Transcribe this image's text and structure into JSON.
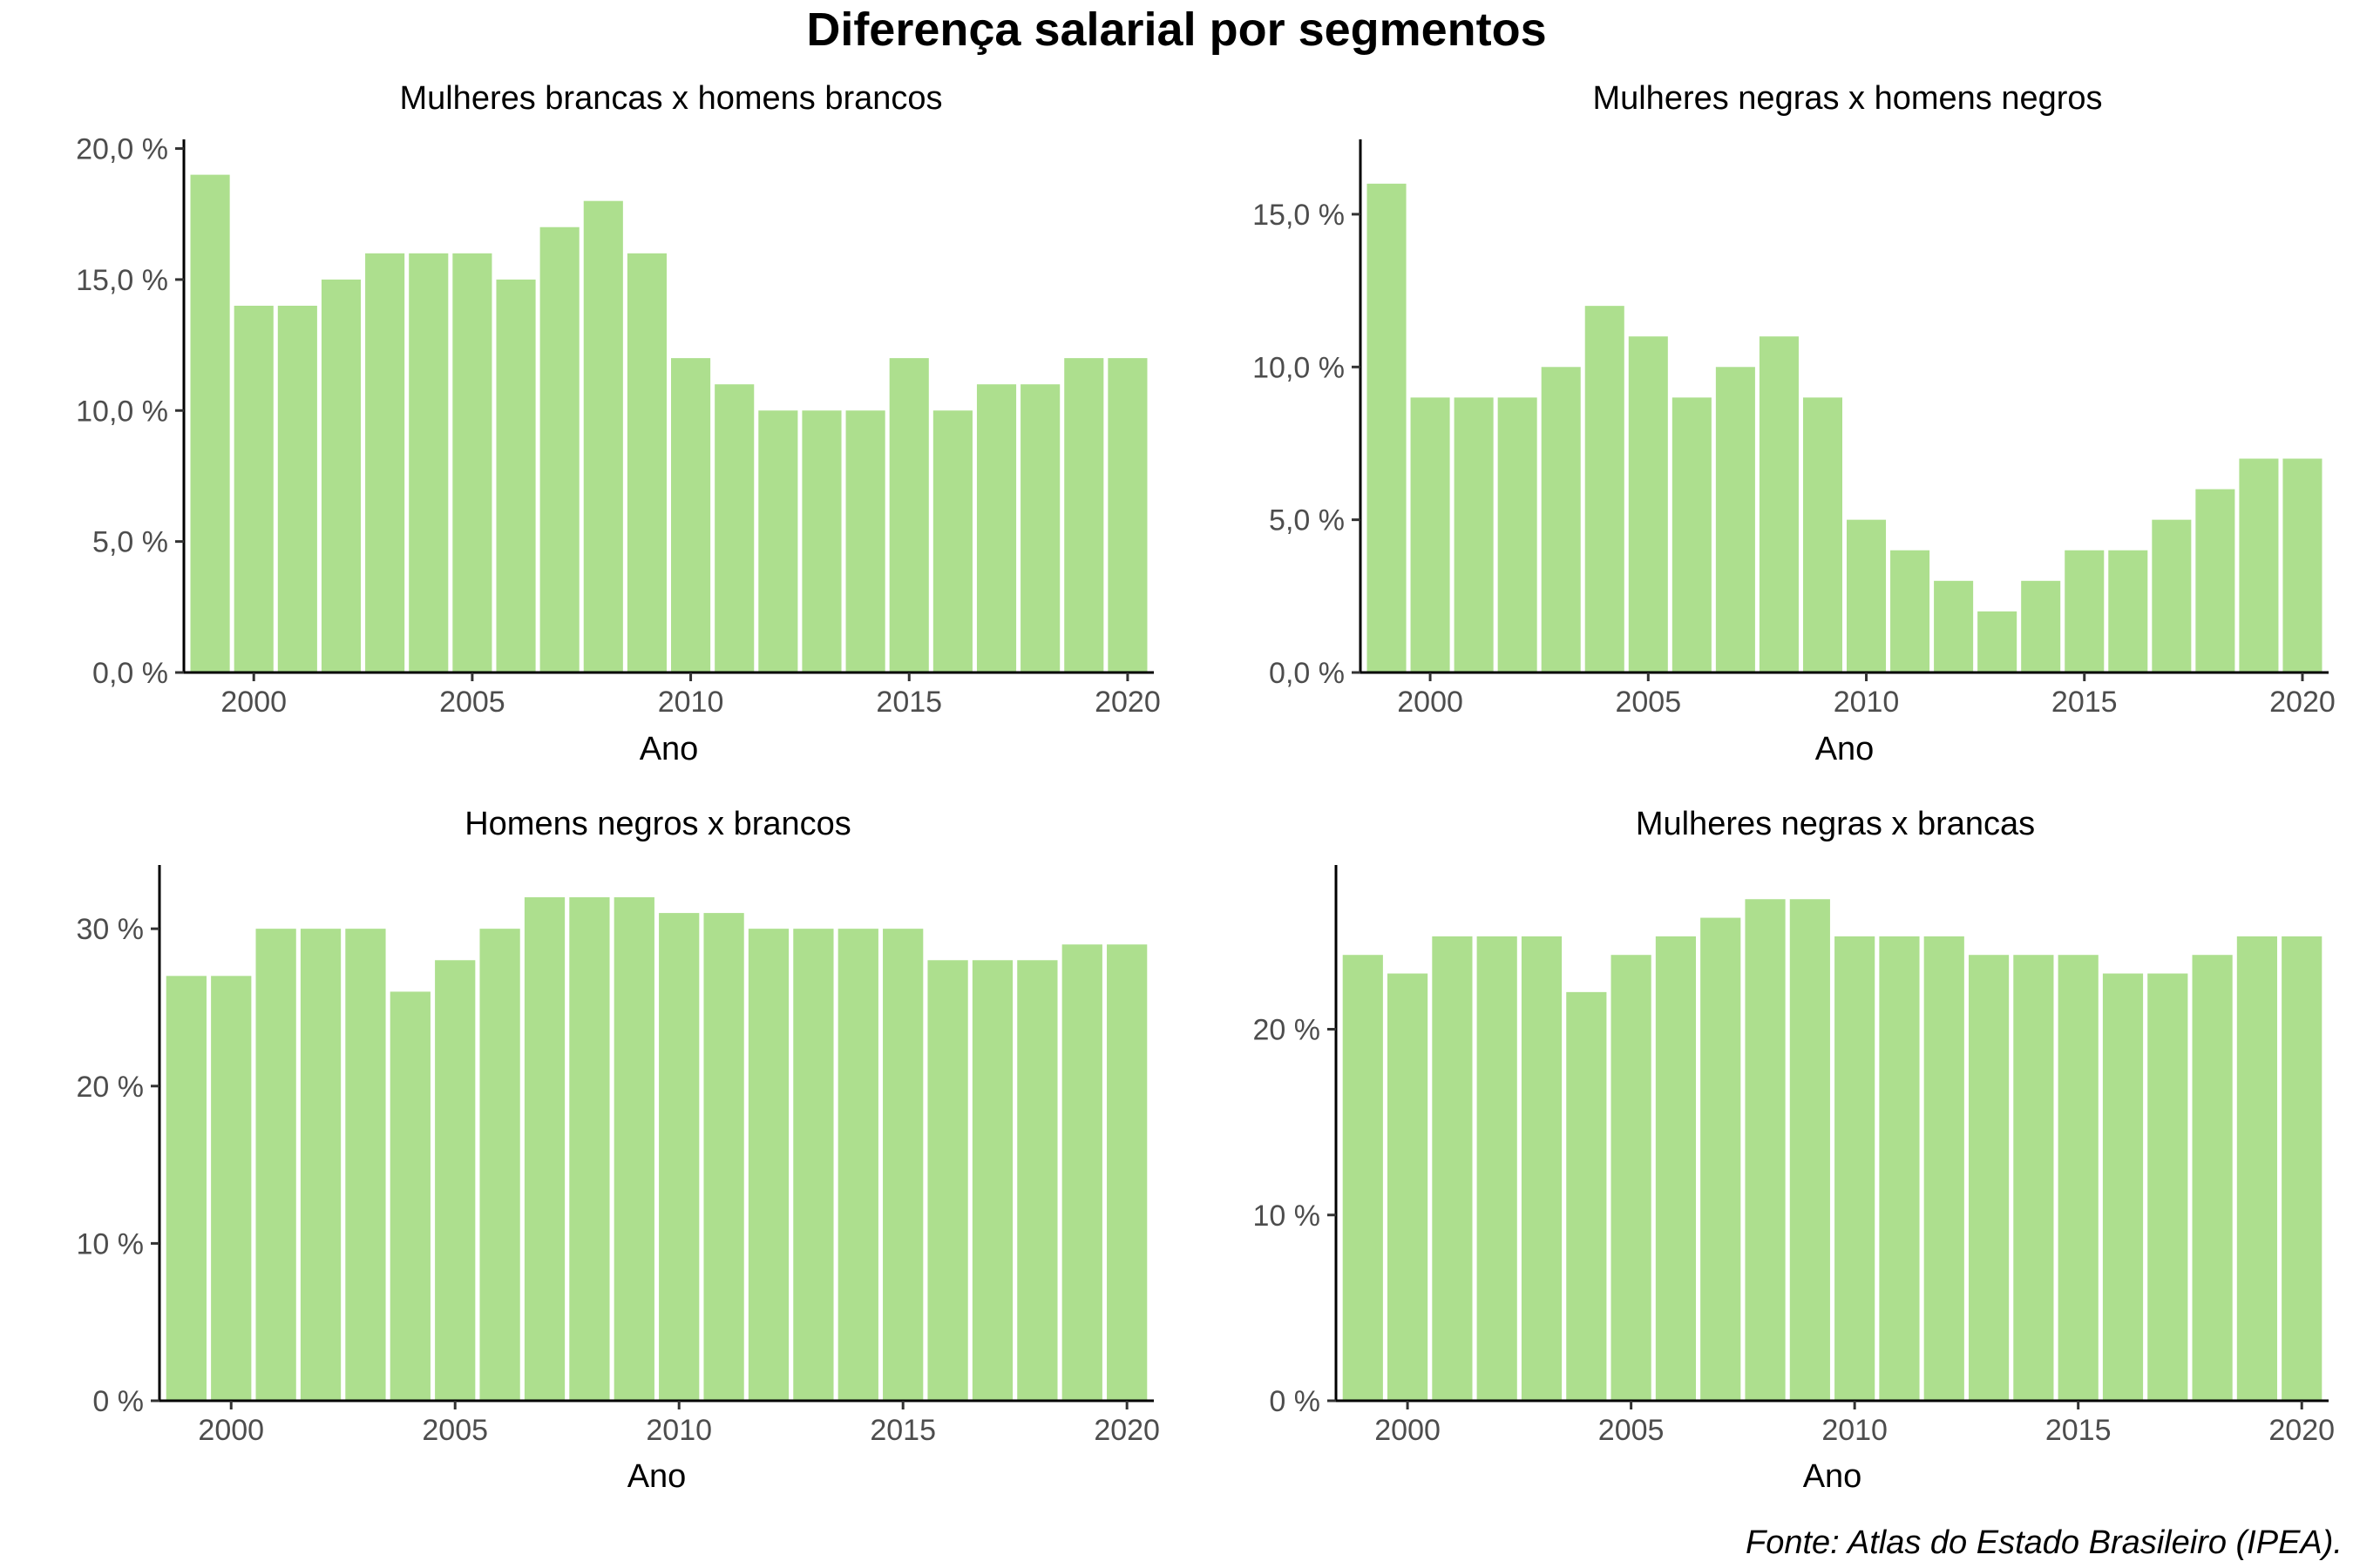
{
  "title": "Diferença salarial por segmentos",
  "caption": "Fonte: Atlas do Estado Brasileiro (IPEA).",
  "colors": {
    "bar": "#ADDF8E"
  },
  "chart_data": [
    {
      "type": "bar",
      "title": "Mulheres brancas x homens brancos",
      "xlabel": "Ano",
      "ylabel": "",
      "x": [
        1999,
        2000,
        2001,
        2002,
        2003,
        2004,
        2005,
        2006,
        2007,
        2008,
        2009,
        2010,
        2011,
        2012,
        2013,
        2014,
        2015,
        2016,
        2017,
        2018,
        2019,
        2020
      ],
      "values": [
        0.19,
        0.14,
        0.14,
        0.15,
        0.16,
        0.16,
        0.16,
        0.15,
        0.17,
        0.18,
        0.16,
        0.12,
        0.11,
        0.1,
        0.1,
        0.1,
        0.12,
        0.1,
        0.11,
        0.11,
        0.12,
        0.12
      ],
      "ylim": [
        0,
        0.2
      ],
      "yticks": [
        0,
        0.05,
        0.1,
        0.15,
        0.2
      ],
      "ytick_labels": [
        "0,0 %",
        "5,0 %",
        "10,0 %",
        "15,0 %",
        "20,0 %"
      ],
      "xticks": [
        2000,
        2005,
        2010,
        2015,
        2020
      ],
      "xtick_labels": [
        "2000",
        "2005",
        "2010",
        "2015",
        "2020"
      ]
    },
    {
      "type": "bar",
      "title": "Mulheres negras x homens negros",
      "xlabel": "Ano",
      "ylabel": "",
      "x": [
        1999,
        2000,
        2001,
        2002,
        2003,
        2004,
        2005,
        2006,
        2007,
        2008,
        2009,
        2010,
        2011,
        2012,
        2013,
        2014,
        2015,
        2016,
        2017,
        2018,
        2019,
        2020
      ],
      "values": [
        0.16,
        0.09,
        0.09,
        0.09,
        0.1,
        0.12,
        0.11,
        0.09,
        0.1,
        0.11,
        0.09,
        0.05,
        0.04,
        0.03,
        0.02,
        0.03,
        0.04,
        0.04,
        0.05,
        0.06,
        0.07,
        0.07
      ],
      "ylim": [
        0,
        0.16
      ],
      "yticks": [
        0,
        0.05,
        0.1,
        0.15
      ],
      "ytick_labels": [
        "0,0 %",
        "5,0 %",
        "10,0 %",
        "15,0 %"
      ],
      "xticks": [
        2000,
        2005,
        2010,
        2015,
        2020
      ],
      "xtick_labels": [
        "2000",
        "2005",
        "2010",
        "2015",
        "2020"
      ]
    },
    {
      "type": "bar",
      "title": "Homens negros x brancos",
      "xlabel": "Ano",
      "ylabel": "",
      "x": [
        1999,
        2000,
        2001,
        2002,
        2003,
        2004,
        2005,
        2006,
        2007,
        2008,
        2009,
        2010,
        2011,
        2012,
        2013,
        2014,
        2015,
        2016,
        2017,
        2018,
        2019,
        2020
      ],
      "values": [
        0.27,
        0.27,
        0.3,
        0.3,
        0.3,
        0.26,
        0.28,
        0.3,
        0.32,
        0.32,
        0.32,
        0.31,
        0.31,
        0.3,
        0.3,
        0.3,
        0.3,
        0.28,
        0.28,
        0.28,
        0.29,
        0.29
      ],
      "ylim": [
        0,
        0.32
      ],
      "yticks": [
        0,
        0.1,
        0.2,
        0.3
      ],
      "ytick_labels": [
        "0 %",
        "10 %",
        "20 %",
        "30 %"
      ],
      "xticks": [
        2000,
        2005,
        2010,
        2015,
        2020
      ],
      "xtick_labels": [
        "2000",
        "2005",
        "2010",
        "2015",
        "2020"
      ]
    },
    {
      "type": "bar",
      "title": "Mulheres negras x brancas",
      "xlabel": "Ano",
      "ylabel": "",
      "x": [
        1999,
        2000,
        2001,
        2002,
        2003,
        2004,
        2005,
        2006,
        2007,
        2008,
        2009,
        2010,
        2011,
        2012,
        2013,
        2014,
        2015,
        2016,
        2017,
        2018,
        2019,
        2020
      ],
      "values": [
        0.24,
        0.23,
        0.25,
        0.25,
        0.25,
        0.22,
        0.24,
        0.25,
        0.26,
        0.27,
        0.27,
        0.25,
        0.25,
        0.25,
        0.24,
        0.24,
        0.24,
        0.23,
        0.23,
        0.24,
        0.25,
        0.25
      ],
      "ylim": [
        0,
        0.27
      ],
      "yticks": [
        0,
        0.1,
        0.2
      ],
      "ytick_labels": [
        "0 %",
        "10 %",
        "20 %"
      ],
      "xticks": [
        2000,
        2005,
        2010,
        2015,
        2020
      ],
      "xtick_labels": [
        "2000",
        "2005",
        "2010",
        "2015",
        "2020"
      ]
    }
  ]
}
